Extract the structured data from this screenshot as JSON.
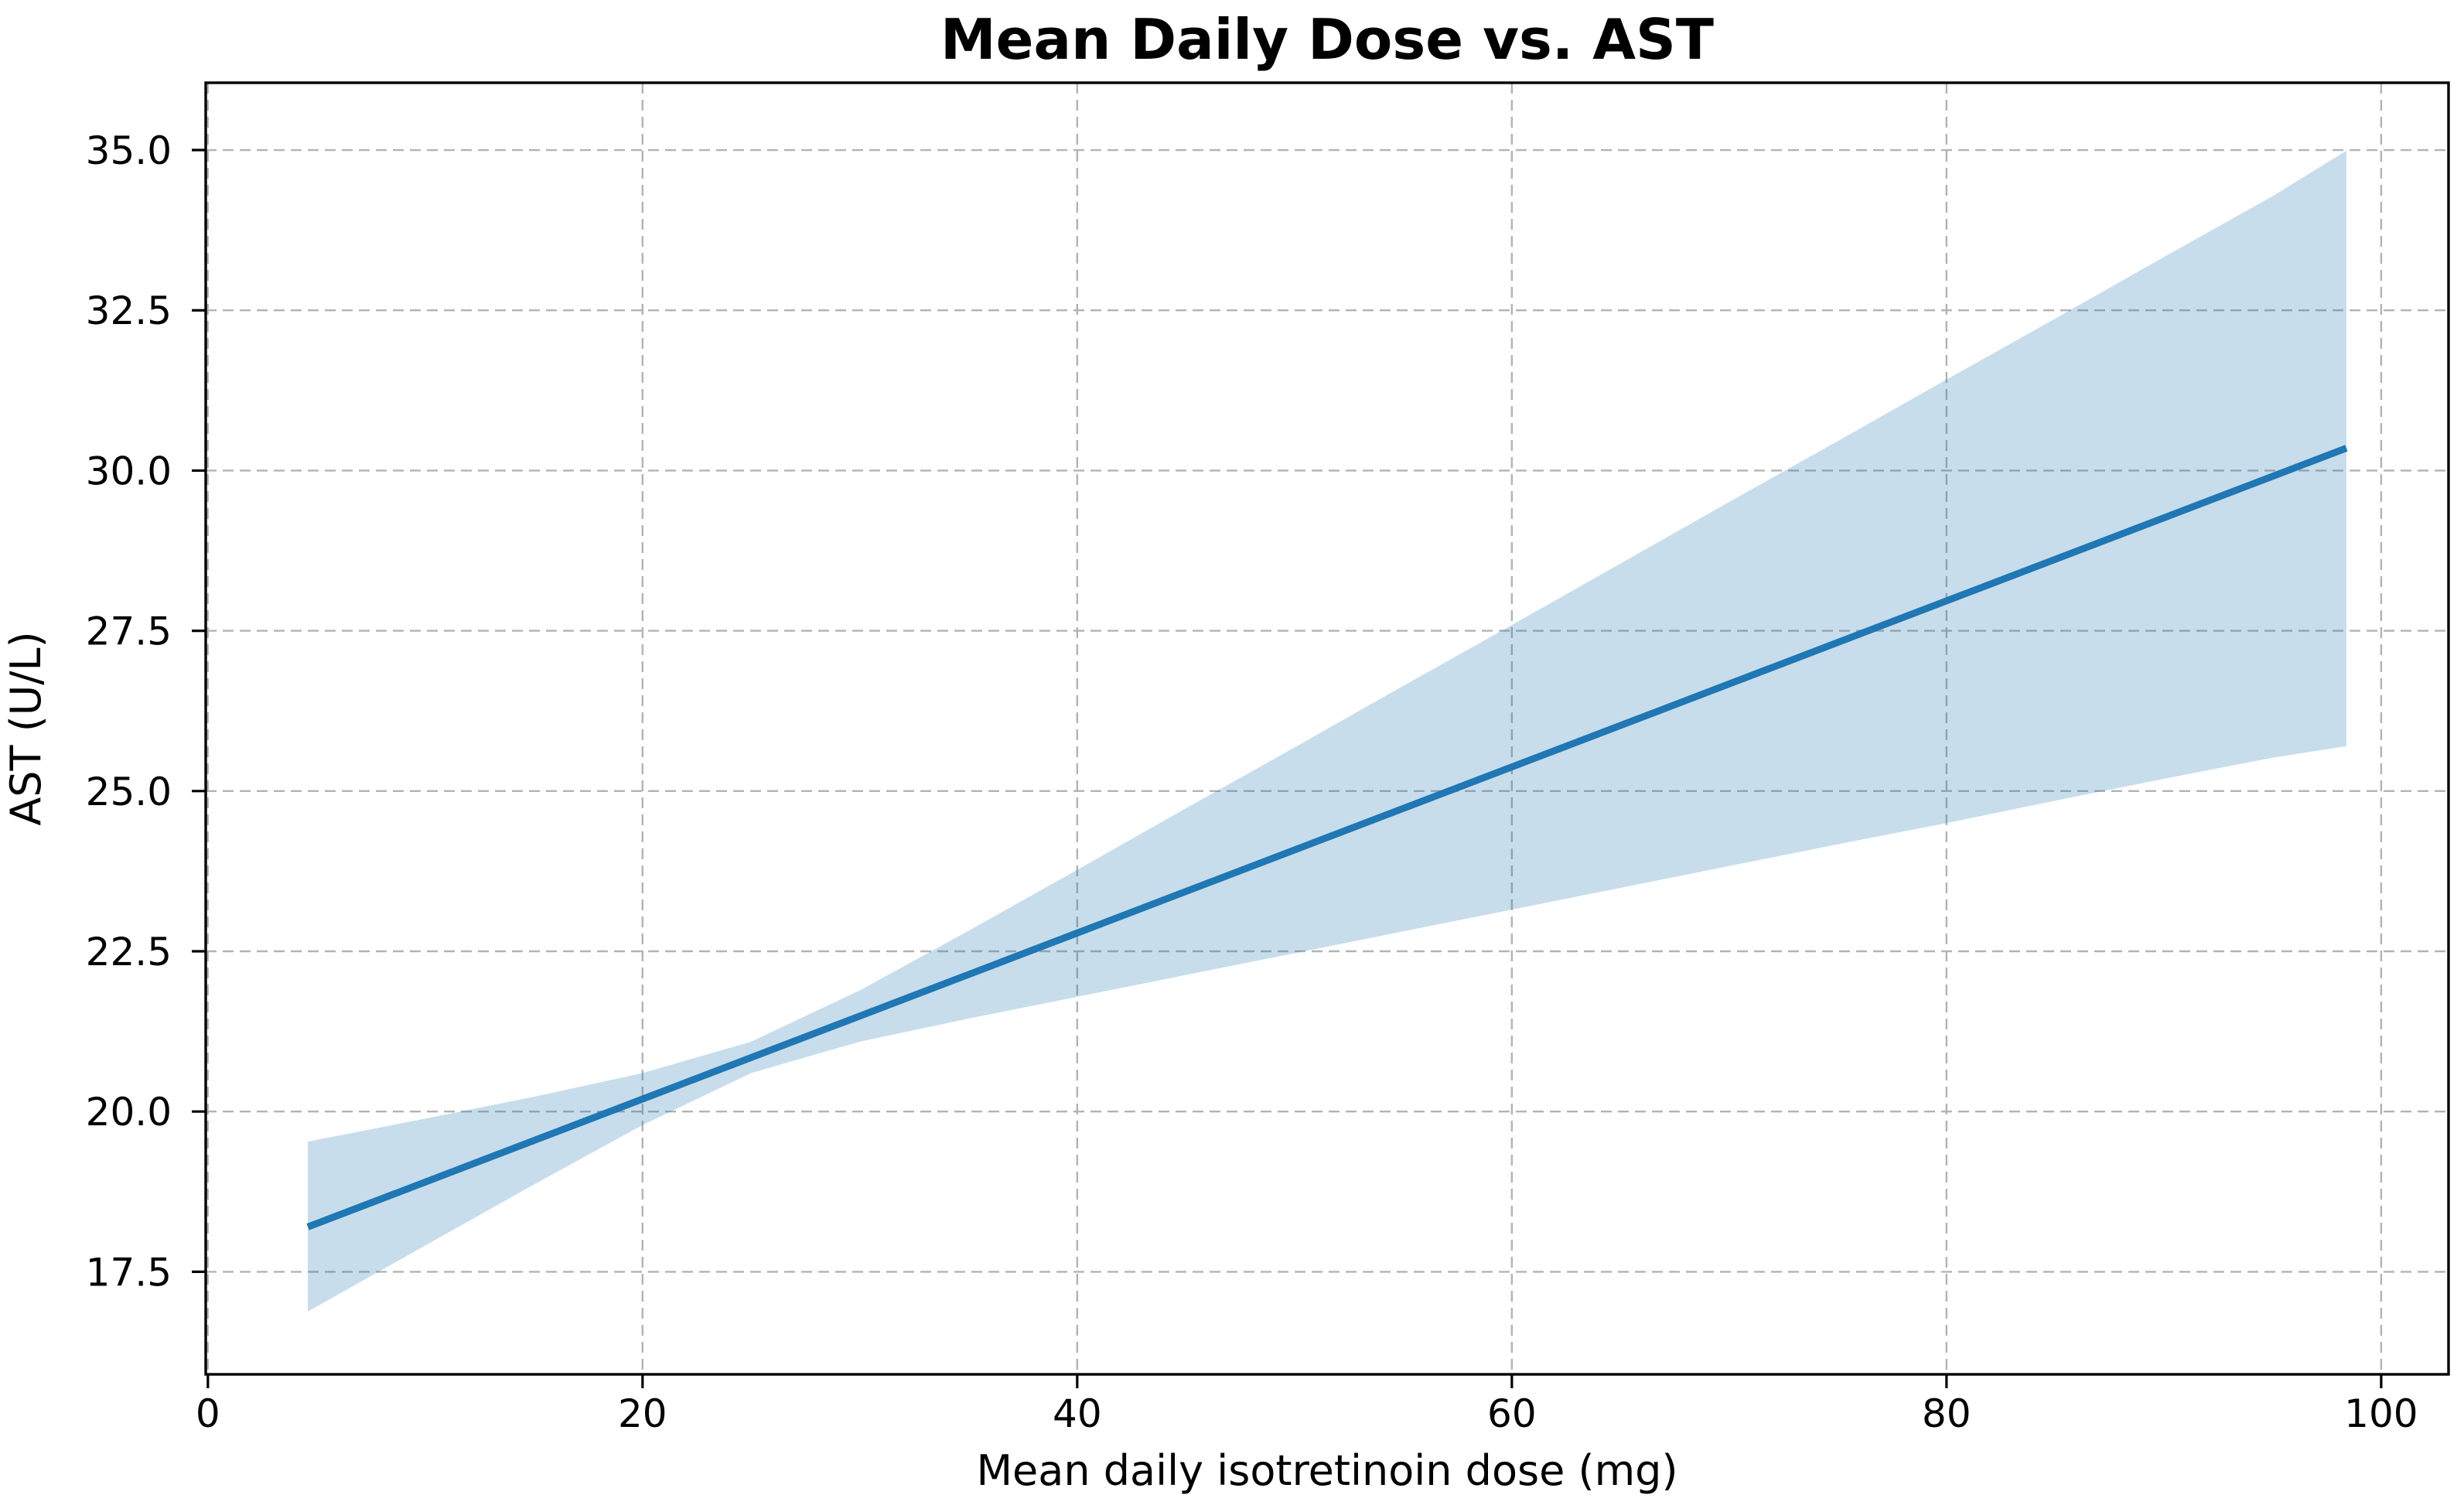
{
  "figure": {
    "background": "#ffffff",
    "text_color": "#000000"
  },
  "chart_data": {
    "type": "line",
    "title": "Mean Daily Dose vs. AST",
    "xlabel": "Mean daily isotretinoin dose (mg)",
    "ylabel": "AST (U/L)",
    "xlim": [
      -0.1,
      103.1
    ],
    "ylim": [
      15.9,
      36.05
    ],
    "xticks": [
      0,
      20,
      40,
      60,
      80,
      100
    ],
    "xtick_labels": [
      "0",
      "20",
      "40",
      "60",
      "80",
      "100"
    ],
    "yticks": [
      17.5,
      20.0,
      22.5,
      25.0,
      27.5,
      30.0,
      32.5,
      35.0
    ],
    "ytick_labels": [
      "17.5",
      "20.0",
      "22.5",
      "25.0",
      "27.5",
      "30.0",
      "32.5",
      "35.0"
    ],
    "grid": true,
    "grid_color": "#b3b3b3",
    "spine_color": "#000000",
    "line_color": "#1f77b4",
    "band_color": "#1f77b4",
    "band_opacity": 0.25,
    "legend": "none",
    "series": [
      {
        "name": "regression-line",
        "kind": "line",
        "x": [
          4.6,
          98.4
        ],
        "y": [
          18.2,
          30.35
        ]
      },
      {
        "name": "confidence-band",
        "kind": "band",
        "x": [
          4.6,
          10,
          15,
          20,
          25,
          30,
          35,
          40,
          45,
          50,
          55,
          60,
          65,
          70,
          75,
          80,
          85,
          90,
          95,
          98.4
        ],
        "upper": [
          19.53,
          19.89,
          20.23,
          20.6,
          21.09,
          21.89,
          22.82,
          23.77,
          24.73,
          25.68,
          26.64,
          27.59,
          28.55,
          29.51,
          30.46,
          31.42,
          32.37,
          33.33,
          34.28,
          34.99
        ],
        "lower": [
          16.88,
          17.91,
          18.86,
          19.79,
          20.6,
          21.09,
          21.45,
          21.79,
          22.13,
          22.47,
          22.81,
          23.15,
          23.49,
          23.83,
          24.17,
          24.5,
          24.85,
          25.19,
          25.52,
          25.7
        ]
      }
    ]
  }
}
